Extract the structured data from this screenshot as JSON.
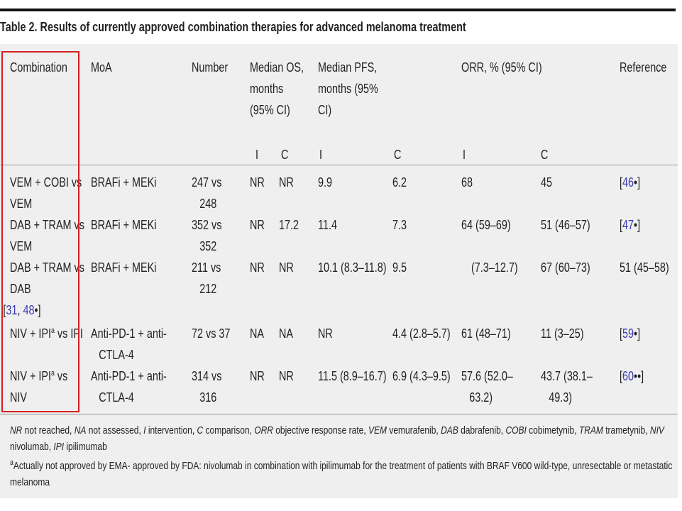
{
  "table": {
    "title": "Table 2.  Results of currently approved combination therapies for advanced melanoma treatment",
    "header": {
      "combination": "Combination",
      "moa": "MoA",
      "number": "Number",
      "os": "Median OS, months (95% CI)",
      "pfs": "Median PFS, months (95% CI)",
      "orr": "ORR, % (95% CI)",
      "reference": "Reference"
    },
    "subheader": {
      "os_i": "I",
      "os_c": "C",
      "pfs_i": "I",
      "pfs_c": "C",
      "orr_i": "I",
      "orr_c": "C"
    },
    "rows": [
      {
        "combination": {
          "text": "VEM + COBI vs VEM"
        },
        "moa": "BRAFi + MEKi",
        "number": "247 vs 248",
        "os_i": "NR",
        "os_c": "NR",
        "pfs_i": "9.9",
        "pfs_c": "6.2",
        "orr_i": "68",
        "orr_c": "45",
        "reference": [
          "[",
          "46",
          "•]"
        ]
      },
      {
        "combination": {
          "text": "DAB + TRAM vs VEM"
        },
        "moa": "BRAFi + MEKi",
        "number": "352 vs 352",
        "os_i": "NR",
        "os_c": "17.2",
        "pfs_i": "11.4",
        "pfs_c": "7.3",
        "orr_i": "64 (59–69)",
        "orr_c": "51 (46–57)",
        "reference": [
          "[",
          "47",
          "•]"
        ]
      },
      {
        "combination": {
          "text": "DAB + TRAM vs DAB",
          "ref": [
            "[",
            "31",
            ", ",
            "48",
            "•]"
          ]
        },
        "moa": "BRAFi + MEKi",
        "number": "211 vs 212",
        "os_i": "NR",
        "os_c": "NR",
        "pfs_i": "10.1 (8.3–11.8)",
        "pfs_c": "9.5",
        "orr_i": "(7.3–12.7)",
        "orr_c": "67 (60–73)",
        "reference": [
          "51 (45–58)"
        ]
      },
      {
        "combination": {
          "text": "NIV + IPI",
          "sup": "a",
          "rest": " vs IPI"
        },
        "moa": "Anti-PD-1 + anti-CTLA-4",
        "number": "72 vs 37",
        "os_i": "NA",
        "os_c": "NA",
        "pfs_i": "NR",
        "pfs_c": "4.4 (2.8–5.7)",
        "orr_i": "61 (48–71)",
        "orr_c": "11 (3–25)",
        "reference": [
          "[",
          "59",
          "•]"
        ]
      },
      {
        "combination": {
          "text": "NIV + IPI",
          "sup": "a",
          "rest": " vs NIV"
        },
        "moa": "Anti-PD-1 + anti-CTLA-4",
        "number": "314 vs 316",
        "os_i": "NR",
        "os_c": "NR",
        "pfs_i": "11.5 (8.9–16.7)",
        "pfs_c": "6.9 (4.3–9.5)",
        "orr_i": "57.6 (52.0–63.2)",
        "orr_c": "43.7 (38.1–49.3)",
        "reference": [
          "[",
          "60",
          "••]"
        ]
      }
    ],
    "abbreviations": [
      {
        "abbr": "NR",
        "def": "not reached,"
      },
      {
        "abbr": "NA",
        "def": "not assessed,"
      },
      {
        "abbr": "I",
        "def": "intervention,"
      },
      {
        "abbr": "C",
        "def": "comparison,"
      },
      {
        "abbr": "ORR",
        "def": "objective response rate,"
      },
      {
        "abbr": "VEM",
        "def": "vemurafenib,"
      },
      {
        "abbr": "DAB",
        "def": "dabrafenib,"
      },
      {
        "abbr": "COBI",
        "def": "cobimetynib,"
      },
      {
        "abbr": "TRAM",
        "def": "trametynib,"
      },
      {
        "abbr": "NIV",
        "def": "nivolumab,"
      },
      {
        "abbr": "IPI",
        "def": "ipilimumab"
      }
    ],
    "footnote": {
      "sup": "a",
      "text": "Actually not approved by EMA- approved by FDA: nivolumab in combination with ipilimumab for the treatment of patients with BRAF V600 wild-type, unresectable or metastatic melanoma"
    }
  }
}
